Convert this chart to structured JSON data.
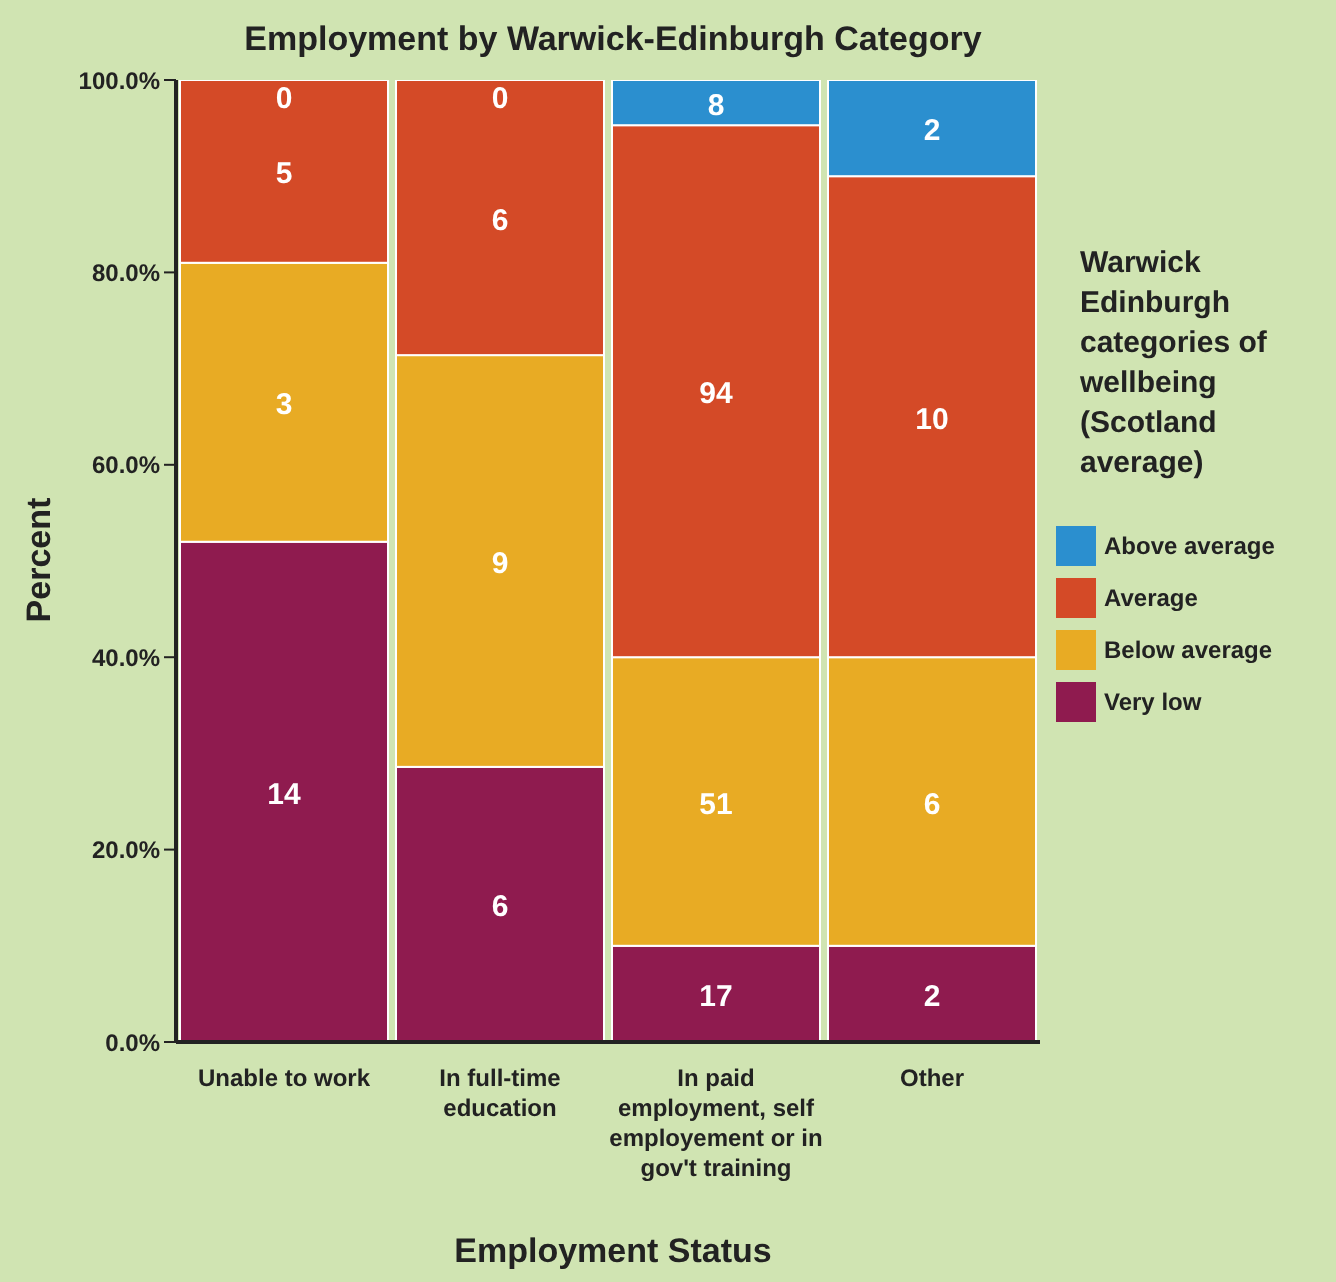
{
  "chart_data": {
    "type": "bar",
    "title": "Employment by Warwick-Edinburgh Category",
    "xlabel": "Employment Status",
    "ylabel": "Percent",
    "legend_title": "Warwick Edinburgh categories of wellbeing (Scotland average)",
    "stacked": true,
    "legend": "right",
    "grid": false,
    "categories": [
      "Unable to work",
      "In full-time education",
      "In paid employment, self employement or in gov't training",
      "Other"
    ],
    "series": [
      {
        "name": "Very low",
        "color": "#8f1b4f",
        "values": [
          52,
          28.6,
          10,
          10
        ]
      },
      {
        "name": "Below average",
        "color": "#e8ab24",
        "values": [
          29,
          42.8,
          30,
          30
        ]
      },
      {
        "name": "Average",
        "color": "#d44a27",
        "values": [
          19,
          28.6,
          55.3,
          50
        ]
      },
      {
        "name": "Above average",
        "color": "#2b8fcf",
        "values": [
          0,
          0,
          4.7,
          10
        ]
      }
    ],
    "annotations": [
      "14",
      "3",
      "5",
      "0",
      "6",
      "9",
      "6",
      "0",
      "17",
      "51",
      "94",
      "8",
      "2",
      "6",
      "10",
      "2"
    ],
    "ylim": [
      0,
      100
    ],
    "yticks": [
      {
        "value": 0,
        "label": "0.0%"
      },
      {
        "value": 20,
        "label": "20.0%"
      },
      {
        "value": 40,
        "label": "40.0%"
      },
      {
        "value": 60,
        "label": "60.0%"
      },
      {
        "value": 80,
        "label": "80.0%"
      },
      {
        "value": 100,
        "label": "100.0%"
      }
    ]
  }
}
